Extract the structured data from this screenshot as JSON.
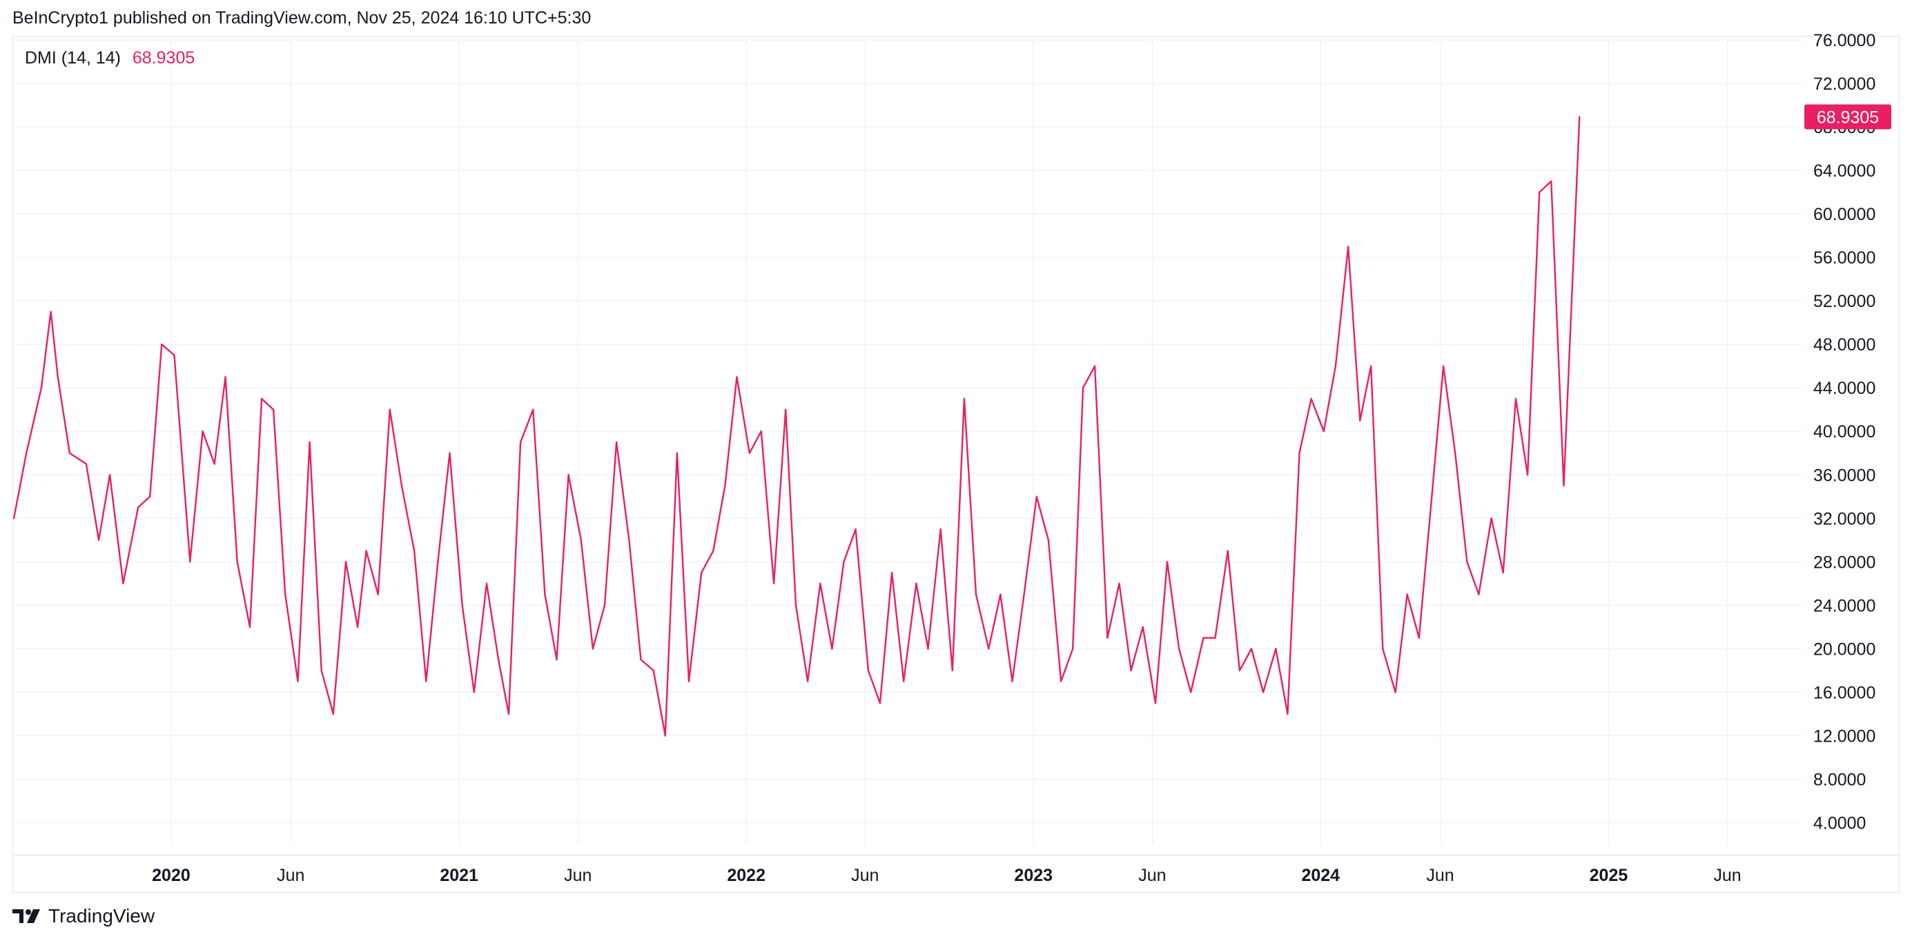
{
  "header": {
    "publisher": "BeInCrypto1",
    "text": "published on TradingView.com, Nov 25, 2024 16:10 UTC+5:30"
  },
  "legend": {
    "indicator": "DMI (14, 14)",
    "value": "68.9305"
  },
  "footer": {
    "brand": "TradingView",
    "icon": "tradingview-logo-icon"
  },
  "colors": {
    "line": "#e91e63",
    "grid": "#f0f3fa",
    "axis_text": "#131722",
    "badge_bg": "#e91e63",
    "badge_text": "#ffffff"
  },
  "chart_data": {
    "type": "line",
    "title": "",
    "xlabel": "",
    "ylabel": "",
    "ylim": [
      2.0,
      76.0
    ],
    "y_ticks": [
      "76.0000",
      "72.0000",
      "68.0000",
      "64.0000",
      "60.0000",
      "56.0000",
      "52.0000",
      "48.0000",
      "44.0000",
      "40.0000",
      "36.0000",
      "32.0000",
      "28.0000",
      "24.0000",
      "20.0000",
      "16.0000",
      "12.0000",
      "8.0000",
      "4.0000"
    ],
    "x_range": [
      "2019-06-15",
      "2025-09-05"
    ],
    "x_ticks": [
      {
        "label": "2020",
        "date": "2020-01-01",
        "bold": true
      },
      {
        "label": "Jun",
        "date": "2020-06-01",
        "bold": false
      },
      {
        "label": "2021",
        "date": "2021-01-01",
        "bold": true
      },
      {
        "label": "Jun",
        "date": "2021-06-01",
        "bold": false
      },
      {
        "label": "2022",
        "date": "2022-01-01",
        "bold": true
      },
      {
        "label": "Jun",
        "date": "2022-06-01",
        "bold": false
      },
      {
        "label": "2023",
        "date": "2023-01-01",
        "bold": true
      },
      {
        "label": "Jun",
        "date": "2023-06-01",
        "bold": false
      },
      {
        "label": "2024",
        "date": "2024-01-01",
        "bold": true
      },
      {
        "label": "Jun",
        "date": "2024-06-01",
        "bold": false
      },
      {
        "label": "2025",
        "date": "2025-01-01",
        "bold": true
      },
      {
        "label": "Jun",
        "date": "2025-06-01",
        "bold": false
      }
    ],
    "last_value_label": "68.9305",
    "grid": true,
    "series": [
      {
        "name": "DMI (14, 14)",
        "points": [
          [
            "2019-06-15",
            32.0
          ],
          [
            "2019-07-01",
            38.0
          ],
          [
            "2019-07-20",
            44.0
          ],
          [
            "2019-08-01",
            51.0
          ],
          [
            "2019-08-10",
            45.0
          ],
          [
            "2019-08-25",
            38.0
          ],
          [
            "2019-09-15",
            37.0
          ],
          [
            "2019-10-01",
            30.0
          ],
          [
            "2019-10-15",
            36.0
          ],
          [
            "2019-11-01",
            26.0
          ],
          [
            "2019-11-20",
            33.0
          ],
          [
            "2019-12-05",
            34.0
          ],
          [
            "2019-12-20",
            48.0
          ],
          [
            "2020-01-05",
            47.0
          ],
          [
            "2020-01-25",
            28.0
          ],
          [
            "2020-02-10",
            40.0
          ],
          [
            "2020-02-25",
            37.0
          ],
          [
            "2020-03-10",
            45.0
          ],
          [
            "2020-03-25",
            28.0
          ],
          [
            "2020-04-10",
            22.0
          ],
          [
            "2020-04-25",
            43.0
          ],
          [
            "2020-05-10",
            42.0
          ],
          [
            "2020-05-25",
            25.0
          ],
          [
            "2020-06-10",
            17.0
          ],
          [
            "2020-06-25",
            39.0
          ],
          [
            "2020-07-10",
            18.0
          ],
          [
            "2020-07-25",
            14.0
          ],
          [
            "2020-08-10",
            28.0
          ],
          [
            "2020-08-25",
            22.0
          ],
          [
            "2020-09-05",
            29.0
          ],
          [
            "2020-09-20",
            25.0
          ],
          [
            "2020-10-05",
            42.0
          ],
          [
            "2020-10-20",
            35.0
          ],
          [
            "2020-11-05",
            29.0
          ],
          [
            "2020-11-20",
            17.0
          ],
          [
            "2020-12-05",
            28.0
          ],
          [
            "2020-12-20",
            38.0
          ],
          [
            "2021-01-05",
            24.0
          ],
          [
            "2021-01-20",
            16.0
          ],
          [
            "2021-02-05",
            26.0
          ],
          [
            "2021-02-20",
            19.0
          ],
          [
            "2021-03-05",
            14.0
          ],
          [
            "2021-03-20",
            39.0
          ],
          [
            "2021-04-05",
            42.0
          ],
          [
            "2021-04-20",
            25.0
          ],
          [
            "2021-05-05",
            19.0
          ],
          [
            "2021-05-20",
            36.0
          ],
          [
            "2021-06-05",
            30.0
          ],
          [
            "2021-06-20",
            20.0
          ],
          [
            "2021-07-05",
            24.0
          ],
          [
            "2021-07-20",
            39.0
          ],
          [
            "2021-08-05",
            30.0
          ],
          [
            "2021-08-20",
            19.0
          ],
          [
            "2021-09-05",
            18.0
          ],
          [
            "2021-09-20",
            12.0
          ],
          [
            "2021-10-05",
            38.0
          ],
          [
            "2021-10-20",
            17.0
          ],
          [
            "2021-11-05",
            27.0
          ],
          [
            "2021-11-20",
            29.0
          ],
          [
            "2021-12-05",
            35.0
          ],
          [
            "2021-12-20",
            45.0
          ],
          [
            "2022-01-05",
            38.0
          ],
          [
            "2022-01-20",
            40.0
          ],
          [
            "2022-02-05",
            26.0
          ],
          [
            "2022-02-20",
            42.0
          ],
          [
            "2022-03-05",
            24.0
          ],
          [
            "2022-03-20",
            17.0
          ],
          [
            "2022-04-05",
            26.0
          ],
          [
            "2022-04-20",
            20.0
          ],
          [
            "2022-05-05",
            28.0
          ],
          [
            "2022-05-20",
            31.0
          ],
          [
            "2022-06-05",
            18.0
          ],
          [
            "2022-06-20",
            15.0
          ],
          [
            "2022-07-05",
            27.0
          ],
          [
            "2022-07-20",
            17.0
          ],
          [
            "2022-08-05",
            26.0
          ],
          [
            "2022-08-20",
            20.0
          ],
          [
            "2022-09-05",
            31.0
          ],
          [
            "2022-09-20",
            18.0
          ],
          [
            "2022-10-05",
            43.0
          ],
          [
            "2022-10-20",
            25.0
          ],
          [
            "2022-11-05",
            20.0
          ],
          [
            "2022-11-20",
            25.0
          ],
          [
            "2022-12-05",
            17.0
          ],
          [
            "2022-12-20",
            25.0
          ],
          [
            "2023-01-05",
            34.0
          ],
          [
            "2023-01-20",
            30.0
          ],
          [
            "2023-02-05",
            17.0
          ],
          [
            "2023-02-20",
            20.0
          ],
          [
            "2023-03-05",
            44.0
          ],
          [
            "2023-03-20",
            46.0
          ],
          [
            "2023-04-05",
            21.0
          ],
          [
            "2023-04-20",
            26.0
          ],
          [
            "2023-05-05",
            18.0
          ],
          [
            "2023-05-20",
            22.0
          ],
          [
            "2023-06-05",
            15.0
          ],
          [
            "2023-06-20",
            28.0
          ],
          [
            "2023-07-05",
            20.0
          ],
          [
            "2023-07-20",
            16.0
          ],
          [
            "2023-08-05",
            21.0
          ],
          [
            "2023-08-20",
            21.0
          ],
          [
            "2023-09-05",
            29.0
          ],
          [
            "2023-09-20",
            18.0
          ],
          [
            "2023-10-05",
            20.0
          ],
          [
            "2023-10-20",
            16.0
          ],
          [
            "2023-11-05",
            20.0
          ],
          [
            "2023-11-20",
            14.0
          ],
          [
            "2023-12-05",
            38.0
          ],
          [
            "2023-12-20",
            43.0
          ],
          [
            "2024-01-05",
            40.0
          ],
          [
            "2024-01-20",
            46.0
          ],
          [
            "2024-02-05",
            57.0
          ],
          [
            "2024-02-20",
            41.0
          ],
          [
            "2024-03-05",
            46.0
          ],
          [
            "2024-03-20",
            20.0
          ],
          [
            "2024-04-05",
            16.0
          ],
          [
            "2024-04-20",
            25.0
          ],
          [
            "2024-05-05",
            21.0
          ],
          [
            "2024-05-20",
            33.0
          ],
          [
            "2024-06-05",
            46.0
          ],
          [
            "2024-06-20",
            38.0
          ],
          [
            "2024-07-05",
            28.0
          ],
          [
            "2024-07-20",
            25.0
          ],
          [
            "2024-08-05",
            32.0
          ],
          [
            "2024-08-20",
            27.0
          ],
          [
            "2024-09-05",
            43.0
          ],
          [
            "2024-09-20",
            36.0
          ],
          [
            "2024-10-05",
            62.0
          ],
          [
            "2024-10-20",
            63.0
          ],
          [
            "2024-11-05",
            35.0
          ],
          [
            "2024-11-25",
            68.93
          ]
        ]
      }
    ]
  }
}
